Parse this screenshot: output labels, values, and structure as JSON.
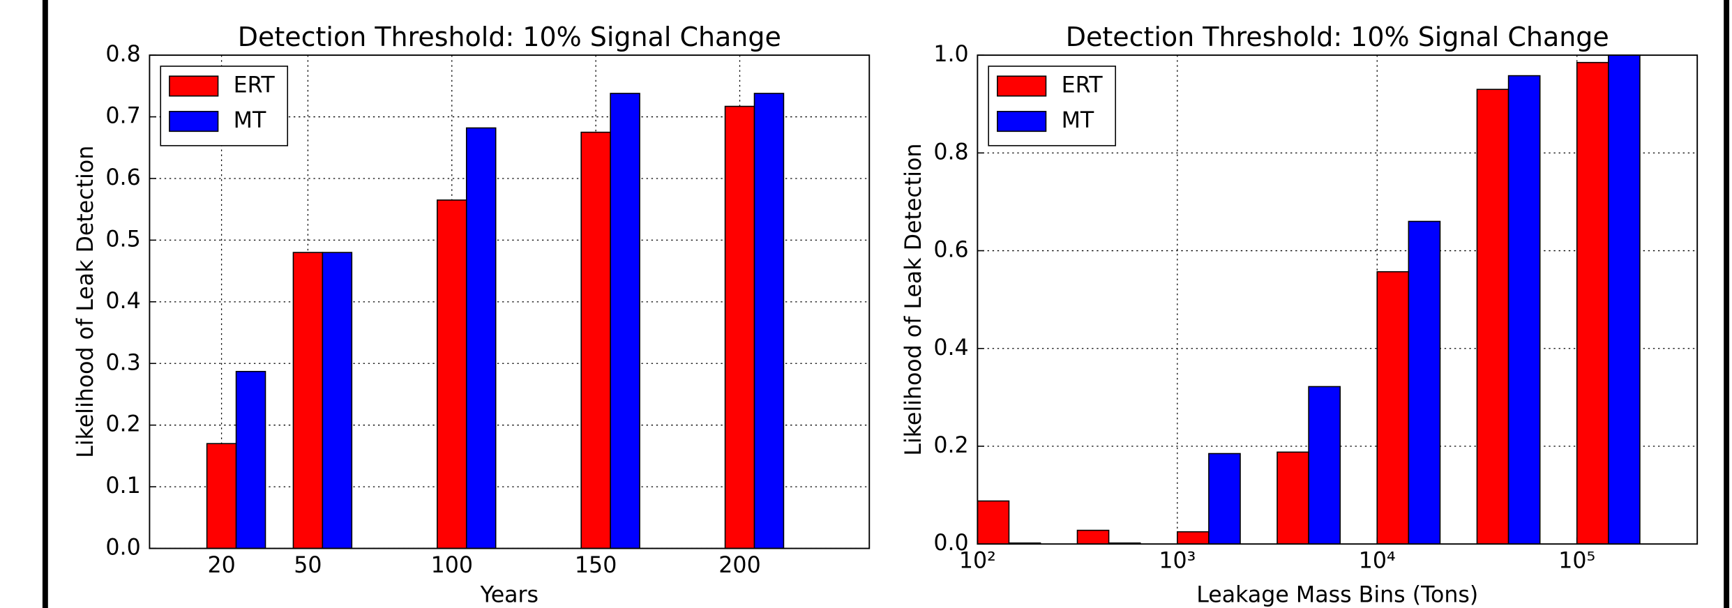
{
  "chart_data": [
    {
      "type": "bar",
      "title": "Detection Threshold: 10% Signal Change",
      "x_label": "Years",
      "y_label": "Likelihood of Leak Detection",
      "x": [
        20,
        50,
        100,
        150,
        200
      ],
      "series": [
        {
          "name": "ERT",
          "color": "#ff0000",
          "values": [
            0.17,
            0.48,
            0.565,
            0.675,
            0.717
          ]
        },
        {
          "name": "MT",
          "color": "#0000ff",
          "values": [
            0.287,
            0.48,
            0.682,
            0.738,
            0.738
          ]
        }
      ],
      "xlim": [
        -5,
        245
      ],
      "xticks": [
        20,
        50,
        100,
        150,
        200
      ],
      "ylim": [
        0,
        0.8
      ],
      "yticks": [
        {
          "value": 0,
          "label": "0.0"
        },
        0.1,
        0.2,
        0.3,
        0.4,
        0.5,
        0.6,
        0.7,
        0.8
      ],
      "grid": true,
      "legend": "upper left"
    },
    {
      "type": "bar",
      "title": "Detection Threshold: 10% Signal Change",
      "x_label": "Leakage Mass Bins (Tons)",
      "y_label": "Likelihood of Leak Detection",
      "x": [
        100,
        316,
        1000,
        3162,
        10000,
        31623,
        100000
      ],
      "series": [
        {
          "name": "ERT",
          "color": "#ff0000",
          "values": [
            0.088,
            0.028,
            0.025,
            0.188,
            0.557,
            0.93,
            0.985
          ]
        },
        {
          "name": "MT",
          "color": "#0000ff",
          "values": [
            0.002,
            0.002,
            0.185,
            0.322,
            0.66,
            0.958,
            1.0
          ]
        }
      ],
      "xscale": "log",
      "xlim": [
        100,
        400000
      ],
      "xticks": [
        {
          "value": 100,
          "label": "10²"
        },
        {
          "value": 1000,
          "label": "10³"
        },
        {
          "value": 10000,
          "label": "10⁴"
        },
        {
          "value": 100000,
          "label": "10⁵"
        }
      ],
      "ylim": [
        0,
        1.0
      ],
      "yticks": [
        {
          "value": 0,
          "label": "0.0"
        },
        0.2,
        0.4,
        0.6,
        0.8,
        {
          "value": 1.0,
          "label": "1.0"
        }
      ],
      "grid": true,
      "legend": "upper left"
    }
  ]
}
